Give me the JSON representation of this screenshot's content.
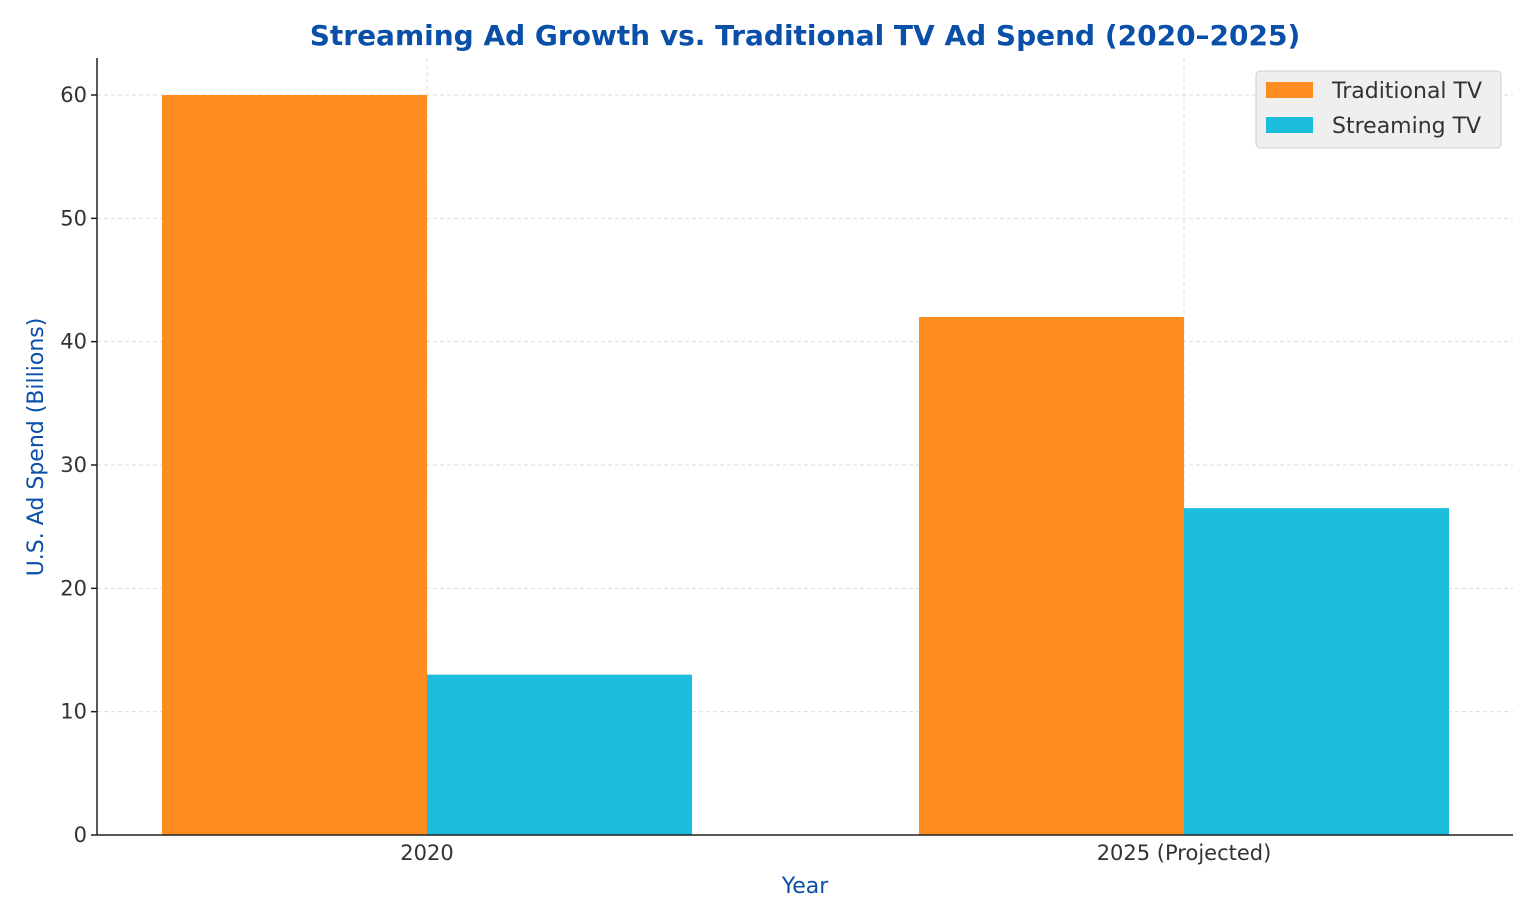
{
  "chart_data": {
    "type": "bar",
    "title": "Streaming Ad Growth vs. Traditional TV Ad Spend (2020–2025)",
    "xlabel": "Year",
    "ylabel": "U.S. Ad Spend (Billions)",
    "categories": [
      "2020",
      "2025 (Projected)"
    ],
    "series": [
      {
        "name": "Traditional TV",
        "values": [
          60,
          42
        ],
        "color": "#ff8c1f"
      },
      {
        "name": "Streaming TV",
        "values": [
          13,
          26.5
        ],
        "color": "#1bbcdc"
      }
    ],
    "ylim": [
      0,
      63
    ],
    "yticks": [
      0,
      10,
      20,
      30,
      40,
      50,
      60
    ],
    "grid": true,
    "legend": "top-right"
  }
}
